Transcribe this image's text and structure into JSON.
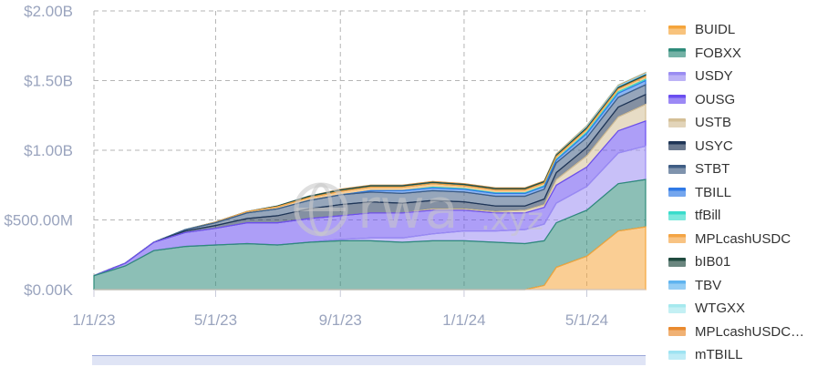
{
  "chart_data": {
    "type": "area",
    "stacked": true,
    "y_ticks": [
      "$0.00K",
      "$500.00M",
      "$1.00B",
      "$1.50B",
      "$2.00B"
    ],
    "y_tick_values": [
      0,
      500000000,
      1000000000,
      1500000000,
      2000000000
    ],
    "ylim": [
      0,
      2000000000
    ],
    "x_ticks": [
      "1/1/23",
      "5/1/23",
      "9/1/23",
      "1/1/24",
      "5/1/24"
    ],
    "x_tick_dates": [
      "2023-01-01",
      "2023-05-01",
      "2023-09-01",
      "2024-01-01",
      "2024-05-01"
    ],
    "xlim": [
      "2023-01-01",
      "2024-06-28"
    ],
    "grid": true,
    "legend_position": "right",
    "watermark": "rwa.xyz",
    "dates": [
      "2023-01-01",
      "2023-02-01",
      "2023-03-01",
      "2023-04-01",
      "2023-05-01",
      "2023-06-01",
      "2023-07-01",
      "2023-08-01",
      "2023-09-01",
      "2023-10-01",
      "2023-11-01",
      "2023-12-01",
      "2024-01-01",
      "2024-02-01",
      "2024-03-01",
      "2024-03-20",
      "2024-04-01",
      "2024-05-01",
      "2024-06-01",
      "2024-06-28"
    ],
    "series": [
      {
        "name": "BUIDL",
        "color": "#f5a53c",
        "values": [
          0,
          0,
          0,
          0,
          0,
          0,
          0,
          0,
          0,
          0,
          0,
          0,
          0,
          0,
          0,
          30000000.0,
          160000000.0,
          240000000.0,
          420000000.0,
          450000000.0
        ]
      },
      {
        "name": "FOBXX",
        "color": "#2e8b7a",
        "values": [
          100000000.0,
          170000000.0,
          280000000.0,
          310000000.0,
          320000000.0,
          330000000.0,
          320000000.0,
          340000000.0,
          350000000.0,
          350000000.0,
          340000000.0,
          350000000.0,
          350000000.0,
          340000000.0,
          330000000.0,
          320000000.0,
          320000000.0,
          330000000.0,
          340000000.0,
          340000000.0
        ]
      },
      {
        "name": "USDY",
        "color": "#9a8cf2",
        "values": [
          0,
          0,
          0,
          0,
          0,
          0,
          0,
          0,
          10000000.0,
          20000000.0,
          30000000.0,
          50000000.0,
          70000000.0,
          80000000.0,
          100000000.0,
          120000000.0,
          140000000.0,
          170000000.0,
          220000000.0,
          240000000.0
        ]
      },
      {
        "name": "OUSG",
        "color": "#6a4ef0",
        "values": [
          0,
          20000000.0,
          60000000.0,
          100000000.0,
          120000000.0,
          150000000.0,
          160000000.0,
          170000000.0,
          170000000.0,
          180000000.0,
          180000000.0,
          170000000.0,
          150000000.0,
          130000000.0,
          120000000.0,
          120000000.0,
          130000000.0,
          140000000.0,
          160000000.0,
          180000000.0
        ]
      },
      {
        "name": "USTB",
        "color": "#d4bf96",
        "values": [
          0,
          0,
          0,
          0,
          0,
          0,
          0,
          0,
          0,
          0,
          0,
          10000000.0,
          10000000.0,
          10000000.0,
          20000000.0,
          20000000.0,
          40000000.0,
          80000000.0,
          100000000.0,
          120000000.0
        ]
      },
      {
        "name": "USYC",
        "color": "#1f3556",
        "values": [
          0,
          0,
          0,
          10000000.0,
          20000000.0,
          30000000.0,
          50000000.0,
          70000000.0,
          80000000.0,
          80000000.0,
          70000000.0,
          60000000.0,
          50000000.0,
          40000000.0,
          30000000.0,
          40000000.0,
          50000000.0,
          60000000.0,
          70000000.0,
          70000000.0
        ]
      },
      {
        "name": "STBT",
        "color": "#3f5d84",
        "values": [
          0,
          0,
          0,
          10000000.0,
          20000000.0,
          40000000.0,
          50000000.0,
          60000000.0,
          70000000.0,
          70000000.0,
          70000000.0,
          70000000.0,
          70000000.0,
          70000000.0,
          70000000.0,
          70000000.0,
          70000000.0,
          70000000.0,
          70000000.0,
          70000000.0
        ]
      },
      {
        "name": "TBILL",
        "color": "#2f79e6",
        "values": [
          0,
          0,
          0,
          0,
          0,
          0,
          0,
          0,
          0,
          10000000.0,
          20000000.0,
          20000000.0,
          20000000.0,
          20000000.0,
          20000000.0,
          20000000.0,
          20000000.0,
          30000000.0,
          30000000.0,
          30000000.0
        ]
      },
      {
        "name": "tfBill",
        "color": "#39dccb",
        "values": [
          0,
          0,
          0,
          0,
          0,
          0,
          0,
          0,
          0,
          0,
          0,
          5000000.0,
          5000000.0,
          5000000.0,
          5000000.0,
          5000000.0,
          5000000.0,
          10000000.0,
          10000000.0,
          10000000.0
        ]
      },
      {
        "name": "MPLcashUSDC",
        "color": "#f4a545",
        "values": [
          0,
          0,
          0,
          0,
          5000000.0,
          10000000.0,
          15000000.0,
          20000000.0,
          25000000.0,
          25000000.0,
          25000000.0,
          25000000.0,
          20000000.0,
          20000000.0,
          20000000.0,
          20000000.0,
          20000000.0,
          20000000.0,
          20000000.0,
          20000000.0
        ]
      },
      {
        "name": "bIB01",
        "color": "#1f4a3f",
        "values": [
          0,
          0,
          0,
          0,
          0,
          0,
          5000000.0,
          10000000.0,
          10000000.0,
          10000000.0,
          10000000.0,
          10000000.0,
          10000000.0,
          10000000.0,
          10000000.0,
          10000000.0,
          10000000.0,
          10000000.0,
          10000000.0,
          10000000.0
        ]
      },
      {
        "name": "TBV",
        "color": "#5fb4ef",
        "values": [
          0,
          0,
          0,
          0,
          0,
          0,
          0,
          0,
          0,
          0,
          0,
          0,
          0,
          0,
          0,
          0,
          0,
          5000000.0,
          5000000.0,
          5000000.0
        ]
      },
      {
        "name": "WTGXX",
        "color": "#a6e9ee",
        "values": [
          0,
          0,
          0,
          0,
          0,
          0,
          0,
          0,
          0,
          0,
          0,
          0,
          0,
          0,
          0,
          0,
          3000000.0,
          4000000.0,
          5000000.0,
          5000000.0
        ]
      },
      {
        "name": "MPLcashUSDC…",
        "color": "#e98a2f",
        "values": [
          0,
          0,
          0,
          0,
          0,
          0,
          0,
          0,
          5000000.0,
          5000000.0,
          5000000.0,
          5000000.0,
          5000000.0,
          5000000.0,
          5000000.0,
          5000000.0,
          5000000.0,
          5000000.0,
          5000000.0,
          5000000.0
        ]
      },
      {
        "name": "mTBILL",
        "color": "#9ee3f2",
        "values": [
          0,
          0,
          0,
          0,
          0,
          0,
          0,
          0,
          0,
          0,
          0,
          0,
          0,
          0,
          0,
          0,
          2000000.0,
          3000000.0,
          4000000.0,
          4000000.0
        ]
      }
    ]
  }
}
